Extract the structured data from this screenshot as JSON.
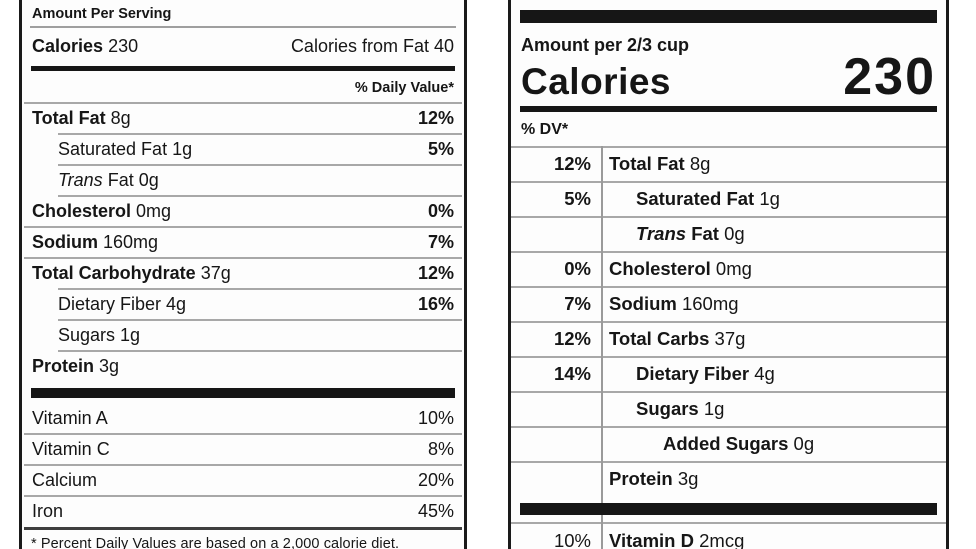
{
  "colors": {
    "ink": "#161616",
    "hairline": "#a8a8a8",
    "footnote_rule": "#3f3f3f",
    "label_background": "#fdfdfd",
    "page_background": "#ffffff"
  },
  "old_label": {
    "amount_header": "Amount Per Serving",
    "calories": {
      "label": "Calories",
      "value": "230",
      "right": "Calories from Fat 40"
    },
    "dv_header": "% Daily Value*",
    "rows": [
      {
        "name": "Total Fat",
        "qty": "8g",
        "dv": "12%",
        "indent": 0,
        "major": true,
        "italic_prefix": ""
      },
      {
        "name": "Saturated Fat",
        "qty": "1g",
        "dv": "5%",
        "indent": 1,
        "major": false,
        "italic_prefix": ""
      },
      {
        "name": "Fat",
        "qty": "0g",
        "dv": "",
        "indent": 1,
        "major": false,
        "italic_prefix": "Trans"
      },
      {
        "name": "Cholesterol",
        "qty": "0mg",
        "dv": "0%",
        "indent": 0,
        "major": true,
        "italic_prefix": ""
      },
      {
        "name": "Sodium",
        "qty": "160mg",
        "dv": "7%",
        "indent": 0,
        "major": true,
        "italic_prefix": ""
      },
      {
        "name": "Total Carbohydrate",
        "qty": "37g",
        "dv": "12%",
        "indent": 0,
        "major": true,
        "italic_prefix": ""
      },
      {
        "name": "Dietary Fiber",
        "qty": "4g",
        "dv": "16%",
        "indent": 1,
        "major": false,
        "italic_prefix": ""
      },
      {
        "name": "Sugars",
        "qty": "1g",
        "dv": "",
        "indent": 1,
        "major": false,
        "italic_prefix": ""
      },
      {
        "name": "Protein",
        "qty": "3g",
        "dv": "",
        "indent": 0,
        "major": true,
        "italic_prefix": ""
      }
    ],
    "vitamins": [
      {
        "name": "Vitamin A",
        "dv": "10%"
      },
      {
        "name": "Vitamin C",
        "dv": "8%"
      },
      {
        "name": "Calcium",
        "dv": "20%"
      },
      {
        "name": "Iron",
        "dv": "45%"
      }
    ],
    "footnote": "* Percent Daily Values are based on a 2,000 calorie diet."
  },
  "new_label": {
    "amount_header": "Amount per 2/3 cup",
    "calories": {
      "label": "Calories",
      "value": "230"
    },
    "dv_header": "% DV*",
    "rows": [
      {
        "dv": "12%",
        "name": "Total Fat",
        "qty": "8g",
        "indent": 0,
        "italic_prefix": ""
      },
      {
        "dv": "5%",
        "name": "Saturated Fat",
        "qty": "1g",
        "indent": 1,
        "italic_prefix": ""
      },
      {
        "dv": "",
        "name": "Fat",
        "qty": "0g",
        "indent": 1,
        "italic_prefix": "Trans"
      },
      {
        "dv": "0%",
        "name": "Cholesterol",
        "qty": "0mg",
        "indent": 0,
        "italic_prefix": ""
      },
      {
        "dv": "7%",
        "name": "Sodium",
        "qty": "160mg",
        "indent": 0,
        "italic_prefix": ""
      },
      {
        "dv": "12%",
        "name": "Total Carbs",
        "qty": "37g",
        "indent": 0,
        "italic_prefix": ""
      },
      {
        "dv": "14%",
        "name": "Dietary Fiber",
        "qty": "4g",
        "indent": 1,
        "italic_prefix": ""
      },
      {
        "dv": "",
        "name": "Sugars",
        "qty": "1g",
        "indent": 1,
        "italic_prefix": ""
      },
      {
        "dv": "",
        "name": "Added Sugars",
        "qty": "0g",
        "indent": 2,
        "italic_prefix": ""
      },
      {
        "dv": "",
        "name": "Protein",
        "qty": "3g",
        "indent": 0,
        "italic_prefix": ""
      }
    ],
    "vitamins": [
      {
        "dv": "10%",
        "name": "Vitamin D",
        "qty": "2mcg",
        "indent": 0,
        "italic_prefix": ""
      }
    ]
  }
}
